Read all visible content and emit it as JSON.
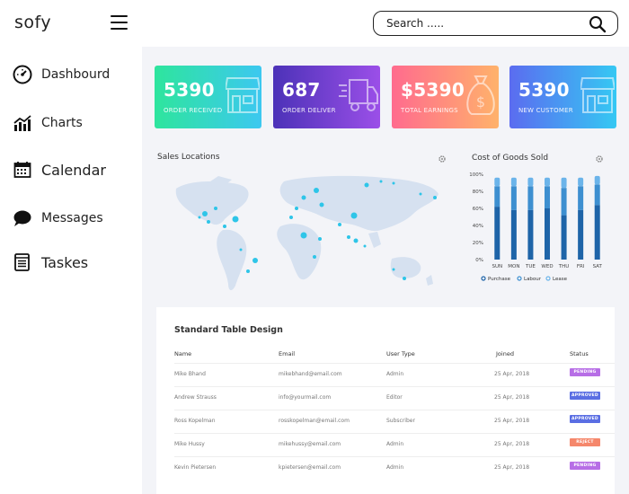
{
  "app": {
    "logo": "sofy"
  },
  "search": {
    "placeholder": "Search ....."
  },
  "sidebar": {
    "items": [
      {
        "label": "Dashbourd",
        "icon": "dashboard-gauge-icon"
      },
      {
        "label": "Charts",
        "icon": "chart-icon"
      },
      {
        "label": "Calendar",
        "icon": "calendar-icon"
      },
      {
        "label": "Messages",
        "icon": "message-bubble-icon"
      },
      {
        "label": "Taskes",
        "icon": "task-list-icon"
      }
    ]
  },
  "cards": [
    {
      "value": "5390",
      "caption": "ORDER RECEIVED",
      "icon": "store-icon",
      "color_start": "#2ee59d",
      "color_end": "#3cc8f0"
    },
    {
      "value": "687",
      "caption": "ORDER DELIVER",
      "icon": "delivery-truck-icon",
      "color_start": "#4c32b8",
      "color_end": "#9b4fe8"
    },
    {
      "value": "$5390",
      "caption": "TOTAL EARNINGS",
      "icon": "money-bag-icon",
      "color_start": "#ff6b8e",
      "color_end": "#ffb26b"
    },
    {
      "value": "5390",
      "caption": "NEW CUSTOMER",
      "icon": "store-icon",
      "color_start": "#5b6cf0",
      "color_end": "#35c8f3"
    }
  ],
  "map": {
    "title": "Sales Locations",
    "accent": "#2ec5e8"
  },
  "chart_data": {
    "type": "bar",
    "title": "Cost of Goods Sold",
    "categories": [
      "SUN",
      "MON",
      "TUE",
      "WED",
      "THU",
      "FRI",
      "SAT"
    ],
    "ytick_labels": [
      "100%",
      "80%",
      "60%",
      "40%",
      "20%",
      "0%"
    ],
    "ylim": [
      0,
      100
    ],
    "stacked": true,
    "series": [
      {
        "name": "Purchase",
        "color": "#1e64a8",
        "values": [
          62,
          58,
          58,
          60,
          52,
          58,
          64
        ]
      },
      {
        "name": "Labour",
        "color": "#3d8fd0",
        "values": [
          24,
          28,
          28,
          26,
          32,
          28,
          24
        ]
      },
      {
        "name": "Lease",
        "color": "#6bb4ea",
        "values": [
          10,
          10,
          10,
          10,
          12,
          10,
          10
        ]
      }
    ],
    "legend_position": "bottom"
  },
  "table": {
    "title": "Standard Table Design",
    "headers": [
      "Name",
      "Email",
      "User Type",
      "Joined",
      "Status"
    ],
    "rows": [
      {
        "name": "Mike Bhand",
        "email": "mikebhand@email.com",
        "type": "Admin",
        "joined": "25 Apr, 2018",
        "status": "PENDING",
        "status_color": "#b76ee6"
      },
      {
        "name": "Andrew Strauss",
        "email": "info@yourmail.com",
        "type": "Editor",
        "joined": "25 Apr, 2018",
        "status": "APPROVED",
        "status_color": "#5a6ee3"
      },
      {
        "name": "Ross Kopelman",
        "email": "rosskopelman@email.com",
        "type": "Subscriber",
        "joined": "25 Apr, 2018",
        "status": "APPROVED",
        "status_color": "#5a6ee3"
      },
      {
        "name": "Mike Hussy",
        "email": "mikehussy@email.com",
        "type": "Admin",
        "joined": "25 Apr, 2018",
        "status": "REJECT",
        "status_color": "#f5876b"
      },
      {
        "name": "Kevin Pietersen",
        "email": "kpietersen@email.com",
        "type": "Admin",
        "joined": "25 Apr, 2018",
        "status": "PENDING",
        "status_color": "#b76ee6"
      }
    ]
  }
}
